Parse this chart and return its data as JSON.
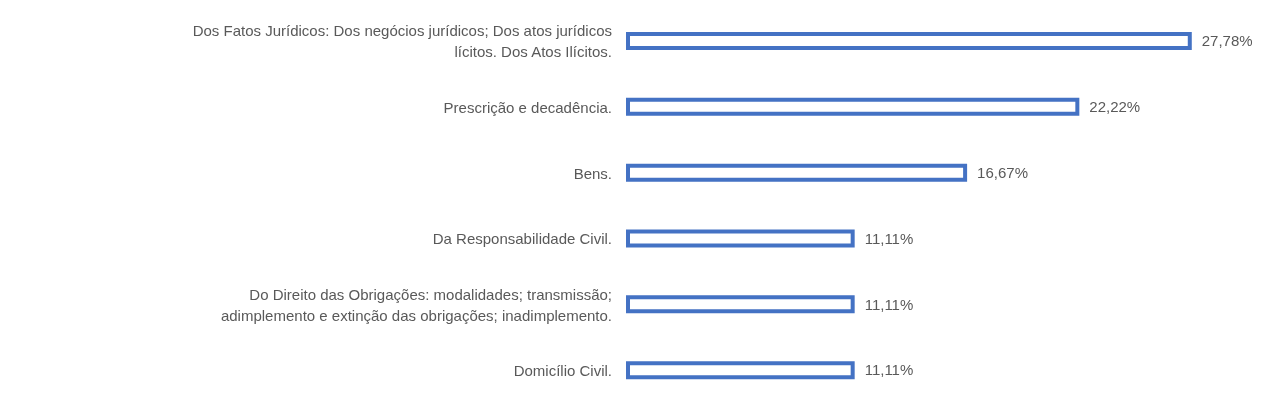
{
  "chart_data": {
    "type": "bar",
    "orientation": "horizontal",
    "categories": [
      "Dos Fatos Jurídicos: Dos negócios jurídicos; Dos atos jurídicos lícitos. Dos Atos Ilícitos.",
      "Prescrição e decadência.",
      "Bens.",
      "Da Responsabilidade Civil.",
      "Do Direito das Obrigações: modalidades; transmissão; adimplemento e extinção das obrigações; inadimplemento.",
      "Domicílio Civil."
    ],
    "values": [
      27.78,
      22.22,
      16.67,
      11.11,
      11.11,
      11.11
    ],
    "value_labels": [
      "27,78%",
      "22,22%",
      "16,67%",
      "11,11%",
      "11,11%",
      "11,11%"
    ],
    "color": "#4472c4"
  }
}
